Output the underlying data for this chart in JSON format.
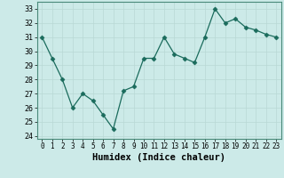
{
  "x": [
    0,
    1,
    2,
    3,
    4,
    5,
    6,
    7,
    8,
    9,
    10,
    11,
    12,
    13,
    14,
    15,
    16,
    17,
    18,
    19,
    20,
    21,
    22,
    23
  ],
  "y": [
    31,
    29.5,
    28,
    26,
    27,
    26.5,
    25.5,
    24.5,
    27.2,
    27.5,
    29.5,
    29.5,
    31,
    29.8,
    29.5,
    29.2,
    31,
    33,
    32,
    32.3,
    31.7,
    31.5,
    31.2,
    31
  ],
  "line_color": "#1a6b5c",
  "marker": "D",
  "marker_size": 2.5,
  "bg_color": "#cceae8",
  "grid_color": "#b8d8d5",
  "xlabel": "Humidex (Indice chaleur)",
  "xlim": [
    -0.5,
    23.5
  ],
  "ylim": [
    23.8,
    33.5
  ],
  "yticks": [
    24,
    25,
    26,
    27,
    28,
    29,
    30,
    31,
    32,
    33
  ],
  "xticks": [
    0,
    1,
    2,
    3,
    4,
    5,
    6,
    7,
    8,
    9,
    10,
    11,
    12,
    13,
    14,
    15,
    16,
    17,
    18,
    19,
    20,
    21,
    22,
    23
  ],
  "tick_fontsize": 5.5,
  "xlabel_fontsize": 7.5
}
